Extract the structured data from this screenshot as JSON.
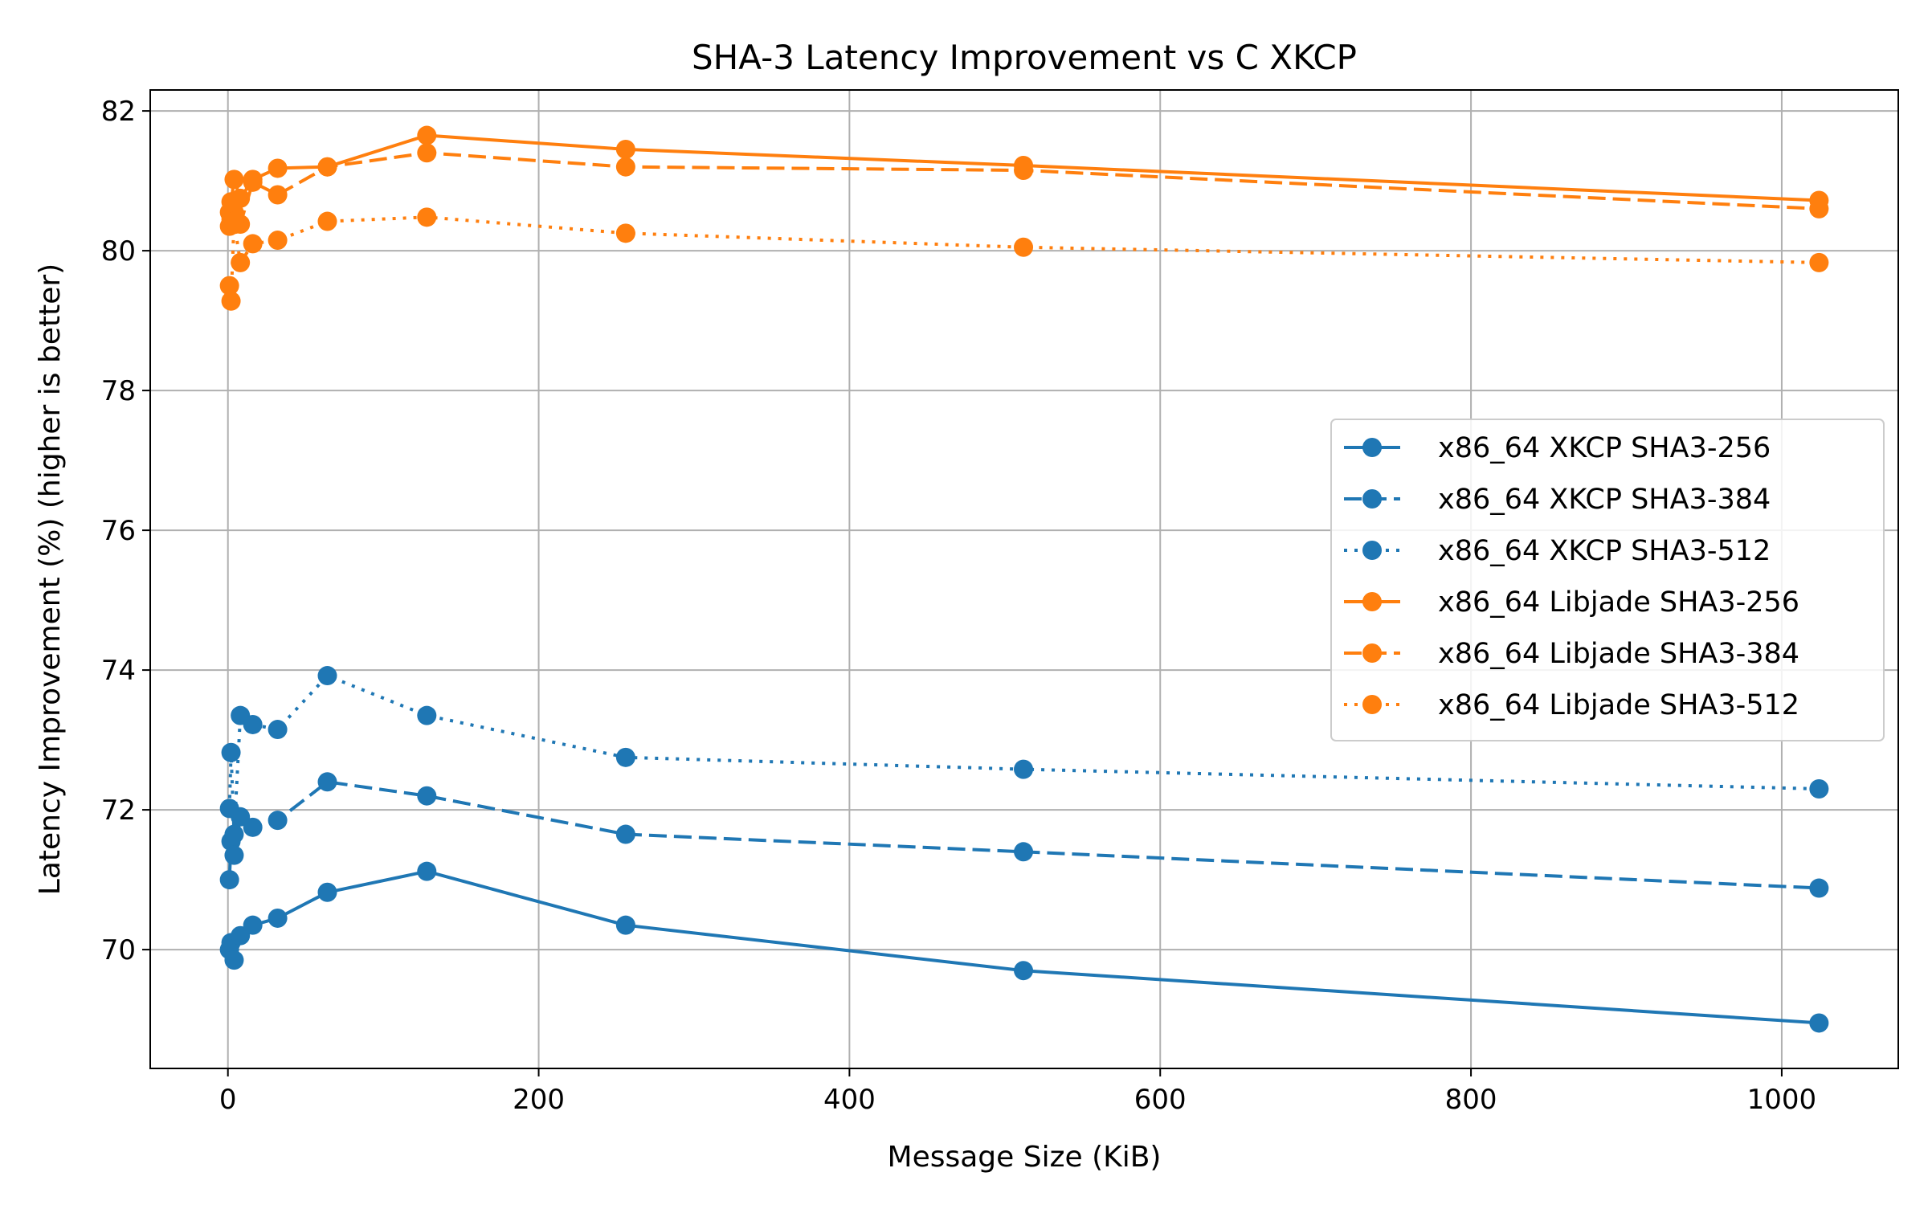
{
  "chart_data": {
    "type": "line",
    "title": "SHA-3 Latency Improvement vs C XKCP",
    "xlabel": "Message Size (KiB)",
    "ylabel": "Latency Improvement (%) (higher is better)",
    "xlim": [
      -50,
      1075
    ],
    "ylim": [
      68.3,
      82.3
    ],
    "xticks": [
      0,
      200,
      400,
      600,
      800,
      1000
    ],
    "yticks": [
      70,
      72,
      74,
      76,
      78,
      80,
      82
    ],
    "grid": true,
    "legend_position": "center-right",
    "x": [
      1,
      2,
      4,
      8,
      16,
      32,
      64,
      128,
      256,
      512,
      1024
    ],
    "series": [
      {
        "name": "x86_64 XKCP SHA3-256",
        "color": "#1f77b4",
        "linestyle": "solid",
        "values": [
          70.0,
          70.1,
          69.85,
          70.2,
          70.35,
          70.45,
          70.82,
          71.12,
          70.35,
          69.7,
          68.95
        ]
      },
      {
        "name": "x86_64 XKCP SHA3-384",
        "color": "#1f77b4",
        "linestyle": "dashed",
        "values": [
          71.0,
          71.55,
          71.35,
          71.9,
          71.75,
          71.85,
          72.4,
          72.2,
          71.65,
          71.4,
          70.88
        ]
      },
      {
        "name": "x86_64 XKCP SHA3-512",
        "color": "#1f77b4",
        "linestyle": "dotted",
        "values": [
          72.02,
          72.82,
          71.65,
          73.35,
          73.22,
          73.15,
          73.92,
          73.35,
          72.75,
          72.58,
          72.3
        ]
      },
      {
        "name": "x86_64 Libjade SHA3-256",
        "color": "#ff7f0e",
        "linestyle": "solid",
        "values": [
          80.55,
          80.7,
          81.02,
          80.75,
          81.02,
          81.18,
          81.2,
          81.65,
          81.45,
          81.22,
          80.72
        ]
      },
      {
        "name": "x86_64 Libjade SHA3-384",
        "color": "#ff7f0e",
        "linestyle": "dashed",
        "values": [
          80.35,
          80.45,
          80.55,
          80.38,
          80.98,
          80.8,
          81.2,
          81.4,
          81.2,
          81.15,
          80.6
        ]
      },
      {
        "name": "x86_64 Libjade SHA3-512",
        "color": "#ff7f0e",
        "linestyle": "dotted",
        "values": [
          79.5,
          79.28,
          80.42,
          79.83,
          80.1,
          80.15,
          80.42,
          80.48,
          80.25,
          80.05,
          79.83
        ]
      }
    ]
  }
}
